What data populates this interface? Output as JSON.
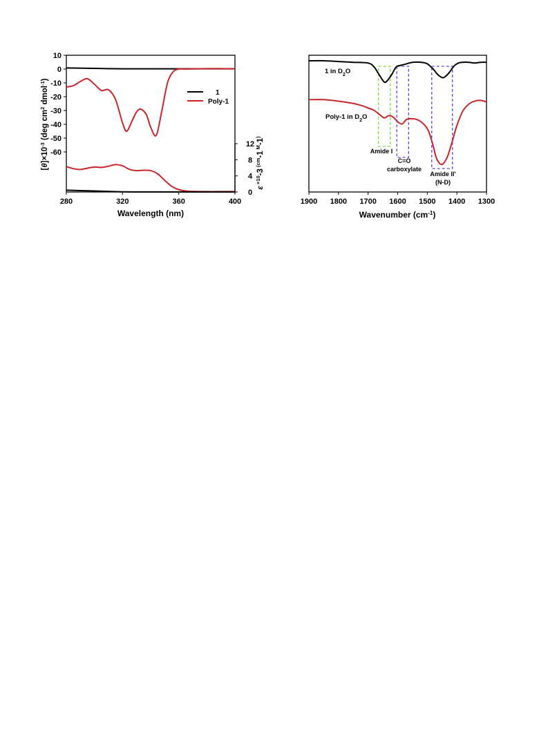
{
  "chart_data": [
    {
      "type": "line",
      "xlabel": "Wavelength (nm)",
      "xlim": [
        280,
        400
      ],
      "x_ticks": [
        "280",
        "320",
        "360",
        "400"
      ],
      "ylabel_left_parts": [
        "[",
        "θ",
        "]×10",
        "-3",
        " (deg cm",
        "2",
        " dmol",
        "-1",
        ")"
      ],
      "ylim_left": [
        -60,
        10
      ],
      "y_ticks_left": [
        "10",
        "0",
        "-10",
        "-20",
        "-30",
        "-40",
        "-50",
        "-60"
      ],
      "ylabel_right_parts": [
        "ε",
        " ×10",
        "-3",
        " (cm",
        "-1",
        " M",
        "-1",
        ")"
      ],
      "ylim_right": [
        0,
        12
      ],
      "y_ticks_right": [
        "0",
        "4",
        "8",
        "12"
      ],
      "legend": [
        {
          "label": "1",
          "color": "#000000"
        },
        {
          "label": "Poly-1",
          "color": "#c8242a"
        }
      ],
      "legend_position": "right",
      "series": [
        {
          "name": "1",
          "panel": "CD",
          "color": "#000000",
          "x": [
            280,
            300,
            320,
            340,
            360,
            380,
            400
          ],
          "values": [
            0.8,
            0.5,
            0.2,
            0.2,
            0.2,
            0.2,
            0.2
          ]
        },
        {
          "name": "Poly-1",
          "panel": "CD",
          "color": "#c8242a",
          "x": [
            280,
            285,
            290,
            295,
            300,
            305,
            310,
            315,
            320,
            323,
            327,
            330,
            333,
            337,
            340,
            344,
            348,
            352,
            356,
            360,
            365,
            370,
            380,
            390,
            400
          ],
          "values": [
            -13,
            -12,
            -9,
            -7,
            -11,
            -15.5,
            -15,
            -22,
            -39,
            -45,
            -37,
            -31,
            -29,
            -33,
            -42,
            -48,
            -30,
            -10,
            -2,
            0,
            0,
            0.2,
            0.3,
            0.3,
            0.2
          ]
        },
        {
          "name": "Poly-1",
          "panel": "UV",
          "color": "#c8242a",
          "x": [
            280,
            285,
            290,
            295,
            300,
            305,
            310,
            315,
            320,
            325,
            330,
            335,
            340,
            345,
            350,
            355,
            360,
            365,
            370,
            380,
            390,
            400
          ],
          "values": [
            6.3,
            5.8,
            5.6,
            5.9,
            6.2,
            6.1,
            6.4,
            6.8,
            6.5,
            5.6,
            5.3,
            5.4,
            5.3,
            4.5,
            2.9,
            1.4,
            0.6,
            0.25,
            0.15,
            0.1,
            0.1,
            0.1
          ]
        },
        {
          "name": "1",
          "panel": "UV",
          "color": "#000000",
          "x": [
            280,
            290,
            300,
            310,
            320,
            330,
            340,
            360,
            380,
            400
          ],
          "values": [
            0.45,
            0.35,
            0.25,
            0.15,
            0.05,
            0.02,
            0.02,
            0.02,
            0.02,
            0.02
          ]
        }
      ]
    },
    {
      "type": "line",
      "xlabel_parts": [
        "Wavenumber (cm",
        "-1",
        ")"
      ],
      "xlim": [
        1900,
        1300
      ],
      "x_ticks": [
        "1900",
        "1800",
        "1700",
        "1600",
        "1500",
        "1400",
        "1300"
      ],
      "y_ticks": [],
      "series": [
        {
          "name_parts": [
            "1 in D",
            "2",
            "O"
          ],
          "color": "#000000",
          "x": [
            1900,
            1850,
            1800,
            1750,
            1700,
            1680,
            1660,
            1645,
            1635,
            1620,
            1605,
            1590,
            1570,
            1550,
            1520,
            1500,
            1480,
            1465,
            1450,
            1440,
            1425,
            1410,
            1395,
            1380,
            1360,
            1340,
            1320,
            1300
          ],
          "values": [
            1.0,
            1.0,
            0.99,
            0.98,
            0.97,
            0.92,
            0.8,
            0.72,
            0.74,
            0.82,
            0.92,
            0.94,
            0.96,
            0.98,
            0.98,
            0.96,
            0.89,
            0.82,
            0.78,
            0.79,
            0.85,
            0.93,
            0.97,
            0.98,
            0.98,
            0.97,
            0.98,
            0.98
          ]
        },
        {
          "name_parts": [
            "Poly-1 in D",
            "2",
            "O"
          ],
          "color": "#c8242a",
          "x": [
            1900,
            1850,
            1800,
            1750,
            1720,
            1700,
            1680,
            1660,
            1645,
            1630,
            1615,
            1600,
            1585,
            1570,
            1550,
            1530,
            1510,
            1495,
            1480,
            1470,
            1460,
            1450,
            1440,
            1430,
            1415,
            1400,
            1380,
            1360,
            1340,
            1320,
            1300
          ],
          "values": [
            0.49,
            0.49,
            0.47,
            0.44,
            0.41,
            0.38,
            0.35,
            0.29,
            0.25,
            0.28,
            0.26,
            0.2,
            0.17,
            0.23,
            0.24,
            0.22,
            0.16,
            0.07,
            -0.12,
            -0.27,
            -0.34,
            -0.36,
            -0.32,
            -0.24,
            -0.05,
            0.15,
            0.34,
            0.43,
            0.47,
            0.48,
            0.46
          ]
        }
      ],
      "annotations": [
        {
          "label_lines": [
            "Amide I"
          ],
          "color": "#7fdc3c",
          "x_range": [
            1665,
            1625
          ]
        },
        {
          "label_lines": [
            "C=O",
            "carboxylate"
          ],
          "color": "#6a3fd8",
          "x_range": [
            1603,
            1563
          ]
        },
        {
          "label_lines": [
            "Amide II'",
            "(N-D)"
          ],
          "color": "#6a3fd8",
          "x_range": [
            1485,
            1415
          ]
        }
      ]
    }
  ]
}
